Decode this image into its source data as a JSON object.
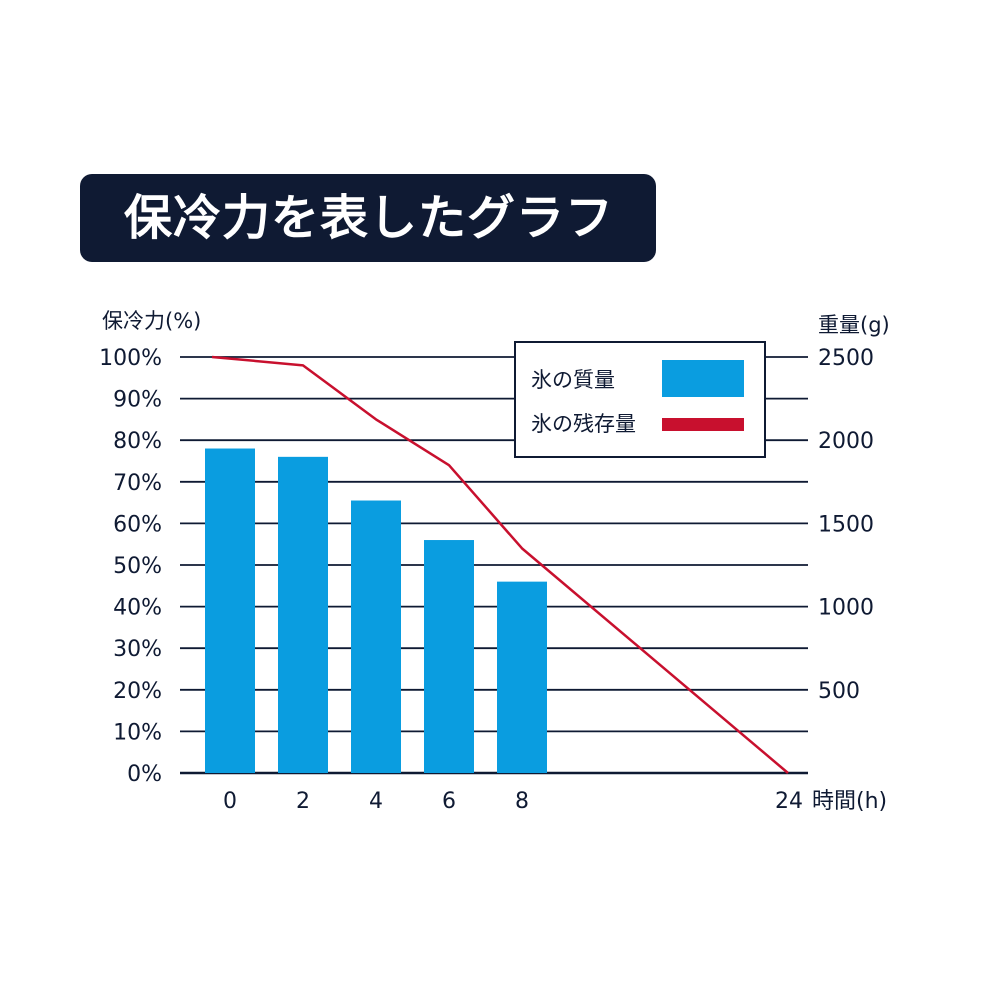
{
  "title": "保冷力を表したグラフ",
  "colors": {
    "navy": "#0f1a33",
    "bar": "#0a9de0",
    "line": "#c8102e"
  },
  "chart_data": {
    "type": "bar",
    "categories": [
      "0",
      "2",
      "4",
      "6",
      "8"
    ],
    "left_axis": {
      "label": "保冷力(%)",
      "range": [
        0,
        100
      ],
      "ticks": [
        "0%",
        "10%",
        "20%",
        "30%",
        "40%",
        "50%",
        "60%",
        "70%",
        "80%",
        "90%",
        "100%"
      ]
    },
    "right_axis": {
      "label": "重量(g)",
      "range": [
        0,
        2500
      ],
      "ticks": [
        "500",
        "1000",
        "1500",
        "2000",
        "2500"
      ]
    },
    "x_axis": {
      "label": "時間(h)",
      "ticks": [
        "0",
        "2",
        "4",
        "6",
        "8",
        "24"
      ]
    },
    "series": [
      {
        "name": "氷の質量",
        "kind": "bar",
        "axis": "left",
        "color": "#0a9de0",
        "x": [
          0,
          2,
          4,
          6,
          8
        ],
        "values": [
          78,
          76,
          65.5,
          56,
          46
        ]
      },
      {
        "name": "氷の残存量",
        "kind": "line",
        "axis": "left",
        "color": "#c8102e",
        "x": [
          0,
          2,
          4,
          6,
          8,
          24
        ],
        "values": [
          100,
          98,
          85,
          74,
          54,
          0
        ]
      }
    ],
    "grid": true,
    "legend_position": "top-right"
  }
}
